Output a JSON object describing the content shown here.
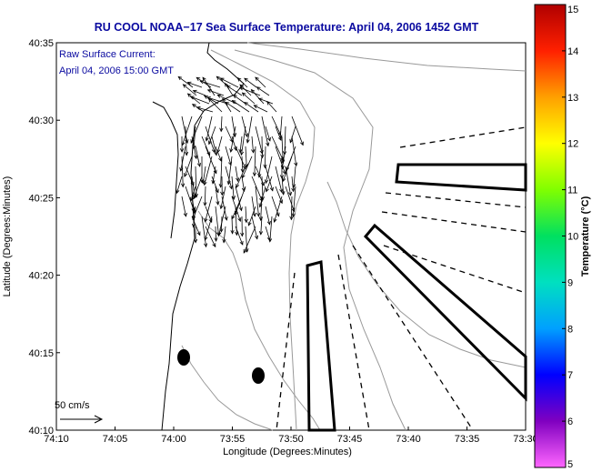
{
  "chart_data": {
    "type": "map",
    "title": "RU COOL  NOAA−17  Sea Surface Temperature:  April 04, 2006 1452 GMT",
    "subtitle_line1": "Raw Surface Current:",
    "subtitle_line2": "April 04, 2006 15:00 GMT",
    "xlabel": "Longitude (Degrees:Minutes)",
    "ylabel": "Latitude (Degrees:Minutes)",
    "x_ticks": [
      "74:10",
      "74:05",
      "74:00",
      "73:55",
      "73:50",
      "73:45",
      "73:40",
      "73:35",
      "73:30"
    ],
    "y_ticks": [
      "40:10",
      "40:15",
      "40:20",
      "40:25",
      "40:30",
      "40:35"
    ],
    "xlim_minutes_west": [
      70,
      30
    ],
    "ylim_minutes_north": [
      10,
      35
    ],
    "scale_label": "50 cm/s",
    "colorbar": {
      "label": "Temperature (°C)",
      "min": 5,
      "max": 15,
      "ticks": [
        "5",
        "6",
        "7",
        "8",
        "9",
        "10",
        "11",
        "12",
        "13",
        "14",
        "15"
      ],
      "colors": [
        "#ff66ff",
        "#8000c0",
        "#0000ff",
        "#00a0ff",
        "#00e0c0",
        "#00e060",
        "#80ff00",
        "#ffff00",
        "#ffa000",
        "#ff2000",
        "#b00000"
      ]
    }
  }
}
